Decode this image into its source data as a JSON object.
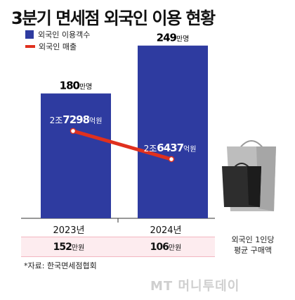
{
  "title": "3분기 면세점 외국인 이용 현황",
  "legend": {
    "visitors": "외국인 이용객수",
    "sales": "외국인 매출"
  },
  "colors": {
    "bar": "#2e3ba0",
    "line": "#e0301e",
    "band": "#fdecef"
  },
  "chart_data": {
    "type": "bar",
    "categories": [
      "2023년",
      "2024년"
    ],
    "series": [
      {
        "name": "외국인 이용객수",
        "type": "bar",
        "values": [
          180,
          249
        ],
        "unit": "만명",
        "labels": [
          {
            "num": "180",
            "unit": "만명"
          },
          {
            "num": "249",
            "unit": "만명"
          }
        ]
      },
      {
        "name": "외국인 매출",
        "type": "line",
        "values": [
          27298,
          26437
        ],
        "unit": "억원",
        "labels": [
          {
            "prefix": "2조",
            "num": "7298",
            "unit": "억원"
          },
          {
            "prefix": "2조",
            "num": "6437",
            "unit": "억원"
          }
        ]
      }
    ],
    "avg_spend": {
      "label_lines": [
        "외국인 1인당",
        "평균 구매액"
      ],
      "values": [
        {
          "num": "152",
          "unit": "만원"
        },
        {
          "num": "106",
          "unit": "만원"
        }
      ]
    },
    "title": "3분기 면세점 외국인 이용 현황"
  },
  "source": "*자료: 한국면세점협회",
  "watermark": "MT 머니투데이",
  "icons": [
    "shopping-bags-illustration"
  ]
}
